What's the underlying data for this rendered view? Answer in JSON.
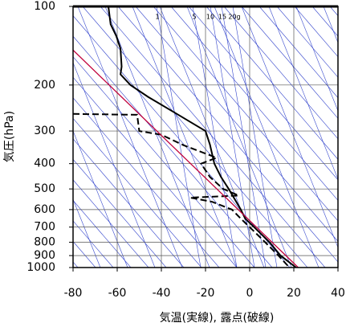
{
  "chart_data": {
    "type": "skewt",
    "xlabel": "気温(実線), 露点(破線)",
    "ylabel": "気圧(hPa)",
    "xlim": [
      -80,
      40
    ],
    "xticks": [
      -80,
      -60,
      -40,
      -20,
      0,
      20,
      40
    ],
    "ylim": [
      1000,
      100
    ],
    "yticks": [
      100,
      200,
      300,
      400,
      500,
      600,
      700,
      800,
      900,
      1000
    ],
    "log_y": true,
    "grid": true,
    "annotations": [
      "1",
      "5",
      "10",
      "15",
      "20g"
    ],
    "series": [
      {
        "color": "#000000",
        "style": "solid",
        "x": [
          -64,
          -63,
          -60.4,
          -58.5,
          -58,
          -58.5,
          -54,
          -46,
          -33,
          -20,
          -18,
          -16,
          -13,
          -9.5,
          -4,
          -2,
          2,
          9,
          14,
          21
        ],
        "values": [
          100,
          117,
          130,
          145,
          170,
          182,
          200,
          222,
          258,
          300,
          338,
          400,
          450,
          500,
          600,
          650,
          700,
          800,
          900,
          1000
        ]
      },
      {
        "color": "#000000",
        "style": "dashed",
        "x": [
          -80,
          -51,
          -50,
          -40,
          -30,
          -15,
          -22,
          -18,
          -12,
          -5,
          -27,
          -17,
          -8,
          -4,
          0,
          7,
          13,
          18
        ],
        "values": [
          258,
          260,
          300,
          310,
          340,
          380,
          400,
          450,
          500,
          530,
          540,
          560,
          600,
          650,
          700,
          800,
          900,
          1000
        ]
      },
      {
        "color": "#c0003c",
        "style": "solid",
        "x": [
          -80,
          22
        ],
        "values": [
          147,
          1000
        ]
      }
    ]
  }
}
